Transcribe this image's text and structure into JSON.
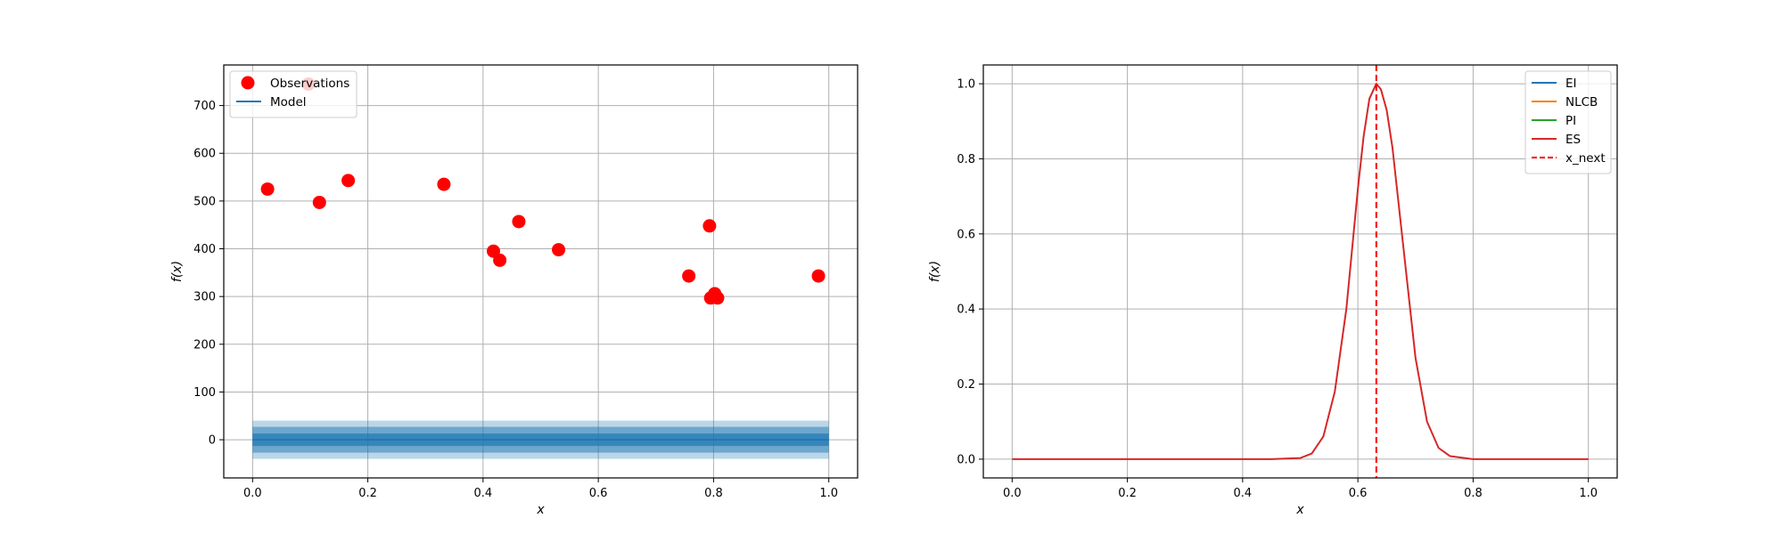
{
  "chart_data": [
    {
      "type": "scatter",
      "title": "",
      "xlabel": "x",
      "ylabel": "f(x)",
      "xlim": [
        -0.05,
        1.05
      ],
      "ylim": [
        -80,
        785
      ],
      "xticks": [
        0.0,
        0.2,
        0.4,
        0.6,
        0.8,
        1.0
      ],
      "xtick_labels": [
        "0.0",
        "0.2",
        "0.4",
        "0.6",
        "0.8",
        "1.0"
      ],
      "yticks": [
        0,
        100,
        200,
        300,
        400,
        500,
        600,
        700
      ],
      "ytick_labels": [
        "0",
        "100",
        "200",
        "300",
        "400",
        "500",
        "600",
        "700"
      ],
      "grid": true,
      "legend_position": "upper-left",
      "legend": [
        "Observations",
        "Model"
      ],
      "series": [
        {
          "name": "Observations",
          "kind": "scatter",
          "color": "#ff0000",
          "x": [
            0.026,
            0.097,
            0.116,
            0.166,
            0.332,
            0.418,
            0.429,
            0.462,
            0.531,
            0.757,
            0.793,
            0.795,
            0.802,
            0.807,
            0.982
          ],
          "y": [
            525,
            745,
            497,
            543,
            535,
            395,
            376,
            457,
            398,
            343,
            448,
            297,
            306,
            297,
            343
          ]
        },
        {
          "name": "Model",
          "kind": "line",
          "color": "#1f77b4",
          "x": [
            0.0,
            1.0
          ],
          "y": [
            0,
            0
          ],
          "bands": [
            {
              "lower": -40,
              "upper": 40,
              "color": "#1f77b4",
              "opacity": 0.3
            },
            {
              "lower": -27,
              "upper": 27,
              "color": "#1f77b4",
              "opacity": 0.5
            },
            {
              "lower": -13,
              "upper": 13,
              "color": "#1f77b4",
              "opacity": 0.7
            }
          ]
        }
      ]
    },
    {
      "type": "line",
      "title": "",
      "xlabel": "x",
      "ylabel": "f(x)",
      "xlim": [
        -0.05,
        1.05
      ],
      "ylim": [
        -0.05,
        1.05
      ],
      "xticks": [
        0.0,
        0.2,
        0.4,
        0.6,
        0.8,
        1.0
      ],
      "xtick_labels": [
        "0.0",
        "0.2",
        "0.4",
        "0.6",
        "0.8",
        "1.0"
      ],
      "yticks": [
        0.0,
        0.2,
        0.4,
        0.6,
        0.8,
        1.0
      ],
      "ytick_labels": [
        "0.0",
        "0.2",
        "0.4",
        "0.6",
        "0.8",
        "1.0"
      ],
      "grid": true,
      "legend_position": "upper-right",
      "legend": [
        "EI",
        "NLCB",
        "PI",
        "ES",
        "x_next"
      ],
      "series": [
        {
          "name": "EI",
          "color": "#1f77b4",
          "style": "solid",
          "x": [],
          "y": []
        },
        {
          "name": "NLCB",
          "color": "#ff7f0e",
          "style": "solid",
          "x": [],
          "y": []
        },
        {
          "name": "PI",
          "color": "#2ca02c",
          "style": "solid",
          "x": [],
          "y": []
        },
        {
          "name": "ES",
          "color": "#d62728",
          "style": "solid",
          "x": [
            0.0,
            0.1,
            0.2,
            0.3,
            0.4,
            0.45,
            0.5,
            0.52,
            0.54,
            0.56,
            0.58,
            0.6,
            0.61,
            0.62,
            0.632,
            0.64,
            0.65,
            0.66,
            0.68,
            0.7,
            0.72,
            0.74,
            0.76,
            0.8,
            0.9,
            1.0
          ],
          "y": [
            0.0,
            0.0,
            0.0,
            0.0,
            0.0,
            0.0,
            0.003,
            0.015,
            0.06,
            0.18,
            0.4,
            0.72,
            0.86,
            0.96,
            1.0,
            0.985,
            0.93,
            0.83,
            0.55,
            0.27,
            0.1,
            0.03,
            0.008,
            0.0,
            0.0,
            0.0
          ]
        },
        {
          "name": "x_next",
          "color": "#ff0000",
          "style": "dashed",
          "kind": "vline",
          "x": 0.632
        }
      ]
    }
  ]
}
